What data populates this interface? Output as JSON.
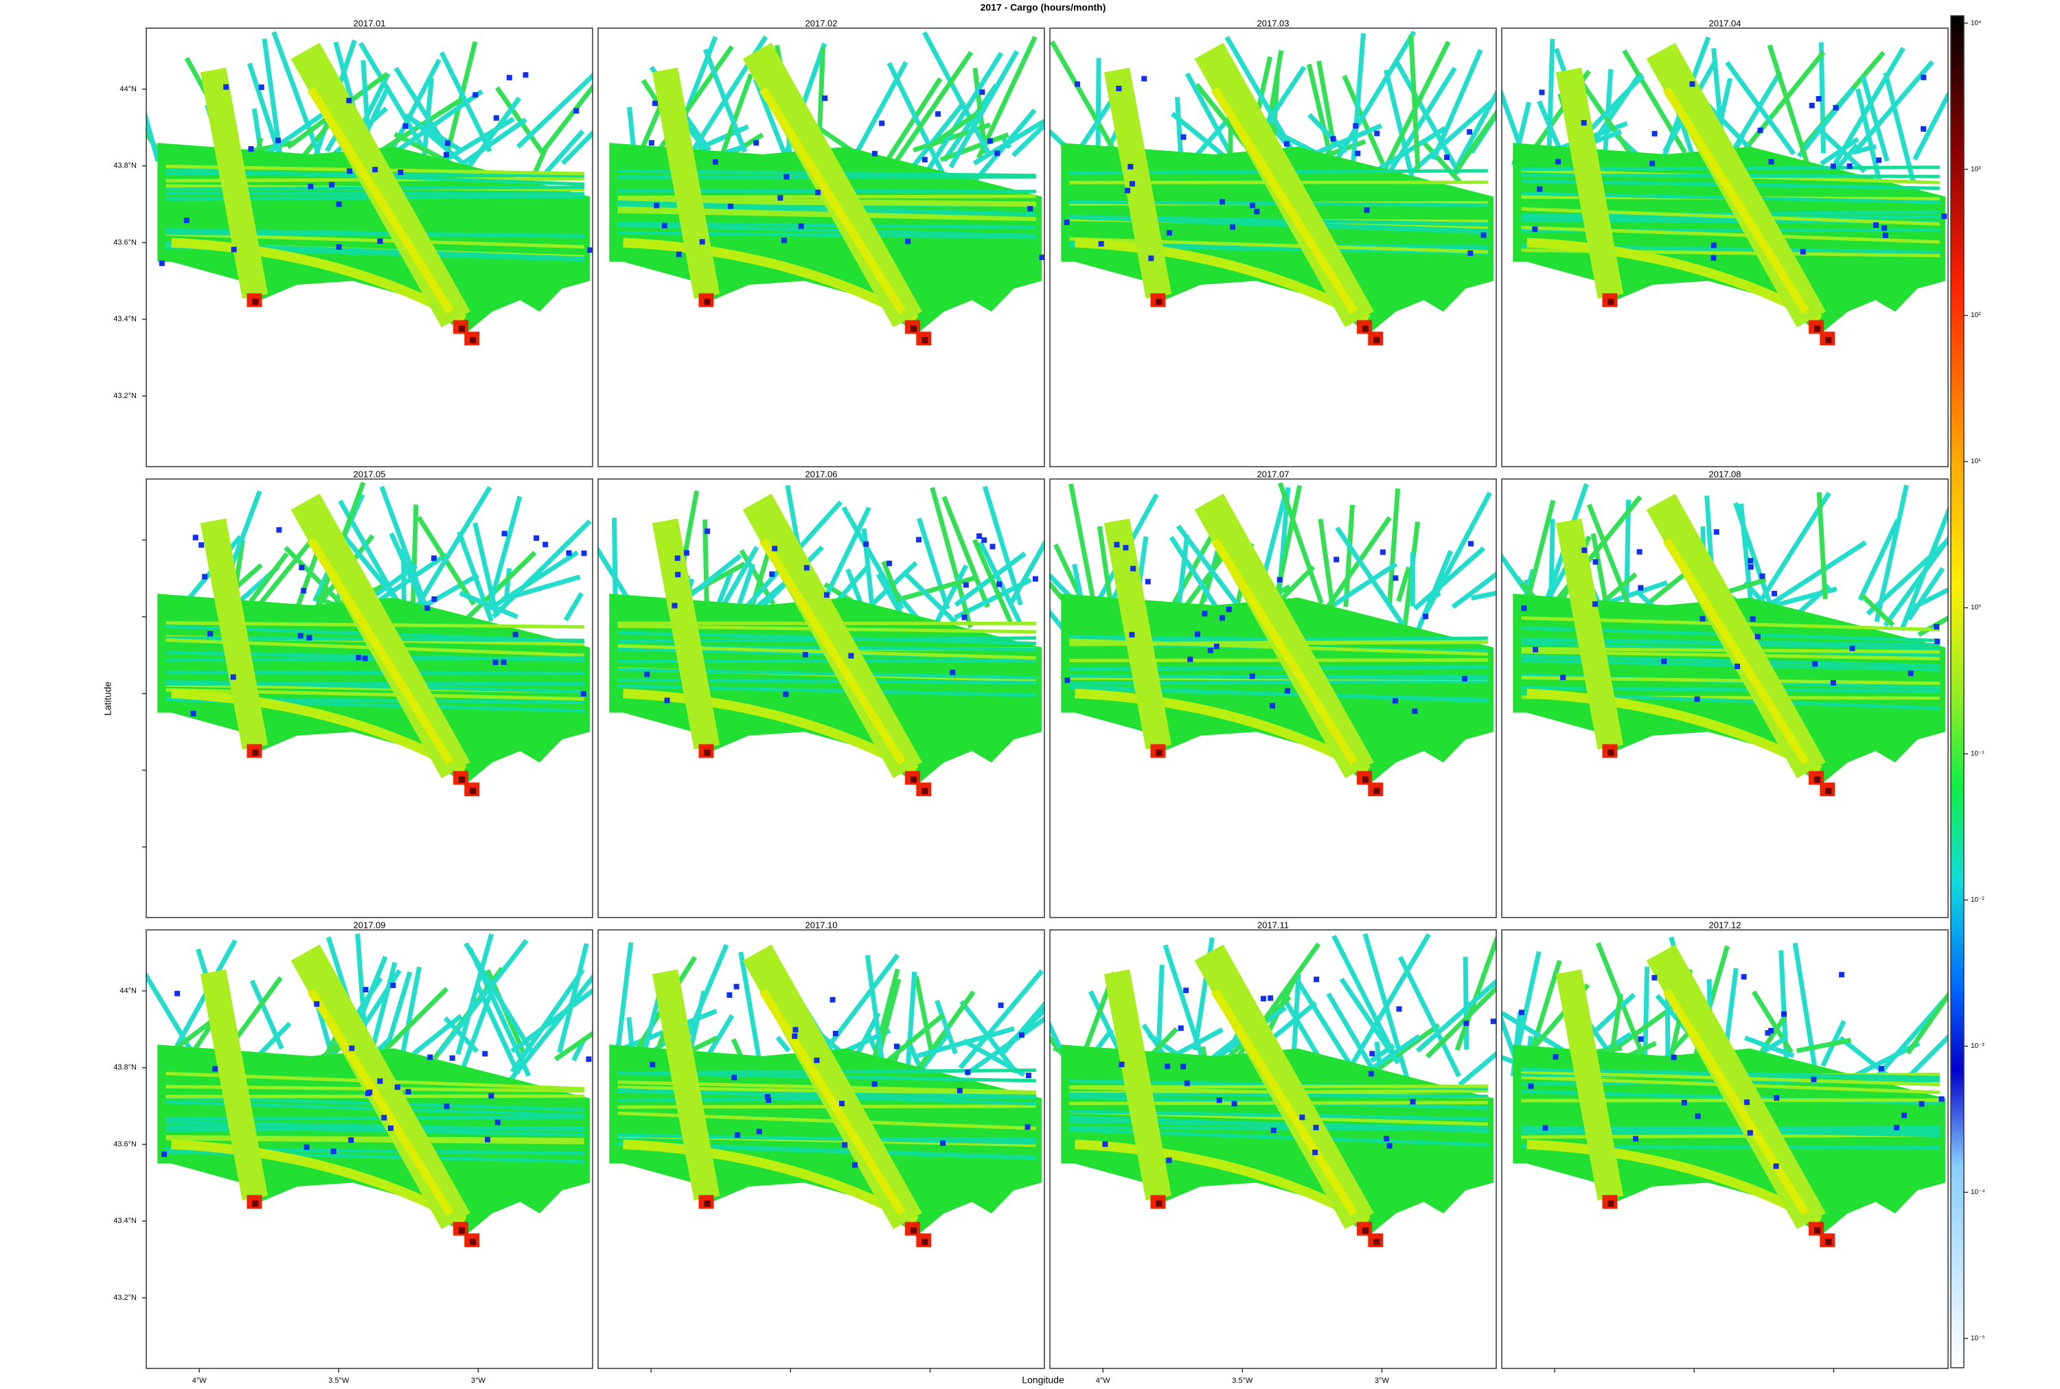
{
  "chart_data": {
    "type": "heatmap-map",
    "title": "2017 - Cargo (hours/month)",
    "panels": [
      "2017.01",
      "2017.02",
      "2017.03",
      "2017.04",
      "2017.05",
      "2017.06",
      "2017.07",
      "2017.08",
      "2017.09",
      "2017.10",
      "2017.11",
      "2017.12"
    ],
    "x_label": "Longitude",
    "y_label": "Latitude",
    "xlim": [
      -4.19,
      -2.59
    ],
    "ylim": [
      43.016,
      44.159
    ],
    "xticks": [
      {
        "value": -4,
        "label": "4°W"
      },
      {
        "value": -3.5,
        "label": "3.5°W"
      },
      {
        "value": -3,
        "label": "3°W"
      }
    ],
    "yticks": [
      {
        "value": 44,
        "label": "44°N"
      },
      {
        "value": 43.8,
        "label": "43.8°N"
      },
      {
        "value": 43.6,
        "label": "43.6°N"
      },
      {
        "value": 43.4,
        "label": "43.4°N"
      },
      {
        "value": 43.2,
        "label": "43.2°N"
      }
    ],
    "clim": [
      -5.2,
      4.05
    ],
    "cticks": [
      {
        "value": 4,
        "label": "10⁴"
      },
      {
        "value": 3,
        "label": "10³"
      },
      {
        "value": 2,
        "label": "10²"
      },
      {
        "value": 1,
        "label": "10¹"
      },
      {
        "value": 0,
        "label": "10⁰"
      },
      {
        "value": -1,
        "label": "10⁻¹"
      },
      {
        "value": -2,
        "label": "10⁻²"
      },
      {
        "value": -3,
        "label": "10⁻³"
      },
      {
        "value": -4,
        "label": "10⁻⁴"
      },
      {
        "value": -5,
        "label": "10⁻⁵"
      }
    ]
  }
}
